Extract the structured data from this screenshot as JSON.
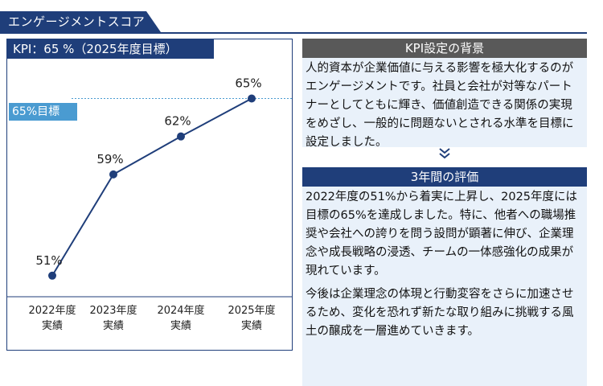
{
  "header": {
    "title": "エンゲージメントスコア"
  },
  "kpi": {
    "title": "KPI：65 %（2025年度目標）",
    "target_tag": "65%目標"
  },
  "chart_data": {
    "type": "line",
    "categories": [
      "2022年度\n実績",
      "2023年度\n実績",
      "2024年度\n実績",
      "2025年度\n実績"
    ],
    "category_lines": [
      [
        "2022年度",
        "実績"
      ],
      [
        "2023年度",
        "実績"
      ],
      [
        "2024年度",
        "実績"
      ],
      [
        "2025年度",
        "実績"
      ]
    ],
    "values": [
      51,
      59,
      62,
      65
    ],
    "data_labels": [
      "51%",
      "59%",
      "62%",
      "65%"
    ],
    "target_value": 65,
    "target_label": "65%目標",
    "ylim": [
      48,
      67
    ],
    "grid": false,
    "colors": {
      "line": "#1f3e7a",
      "target": "#4a9bd1"
    }
  },
  "background": {
    "heading": "KPI設定の背景",
    "text": "人的資本が企業価値に与える影響を極大化するのがエンゲージメントです。社員と会社が対等なパートナーとしてともに輝き、価値創造できる関係の実現をめざし、一般的に問題ないとされる水準を目標に設定しました。"
  },
  "evaluation": {
    "heading": "3年間の評価",
    "paragraph1": "2022年度の51%から着実に上昇し、2025年度には目標の65%を達成しました。特に、他者への職場推奨や会社への誇りを問う設問が顕著に伸び、企業理念や成長戦略の浸透、チームの一体感強化の成果が現れています。",
    "paragraph2": "今後は企業理念の体現と行動変容をさらに加速させるため、変化を恐れず新たな取り組みに挑戦する風土の醸成を一層進めていきます。"
  }
}
